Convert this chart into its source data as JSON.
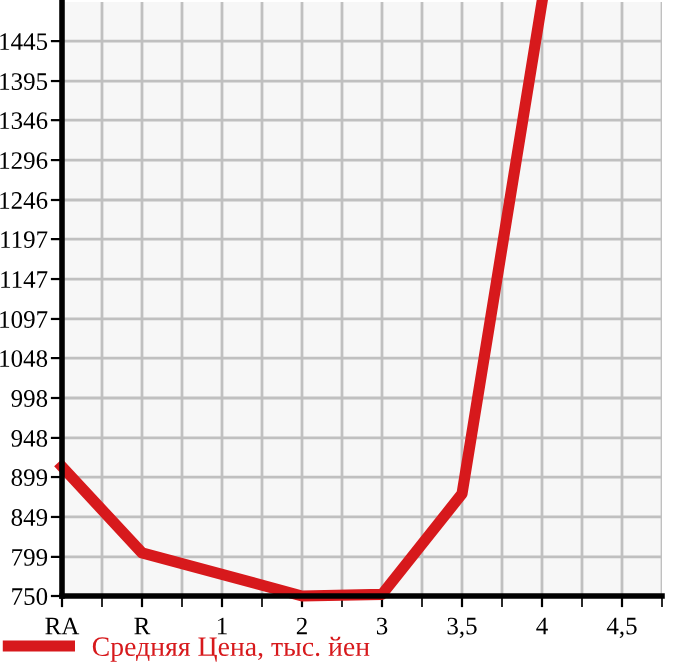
{
  "chart_data": {
    "type": "line",
    "categories": [
      "RA",
      "R",
      "1",
      "2",
      "3",
      "3,5",
      "4",
      "4,5"
    ],
    "series": [
      {
        "name": "Средняя Цена, тыс. йен",
        "color": "#d7191c",
        "values": [
          912,
          804,
          777,
          750,
          752,
          878,
          1494,
          null
        ]
      }
    ],
    "ylim": [
      750,
      1494
    ],
    "yticks": [
      750,
      799,
      849,
      899,
      948,
      998,
      1048,
      1097,
      1147,
      1197,
      1246,
      1296,
      1346,
      1395,
      1445
    ],
    "grid": true,
    "legend": "bottom",
    "marker": "none",
    "line_style": "solid"
  }
}
